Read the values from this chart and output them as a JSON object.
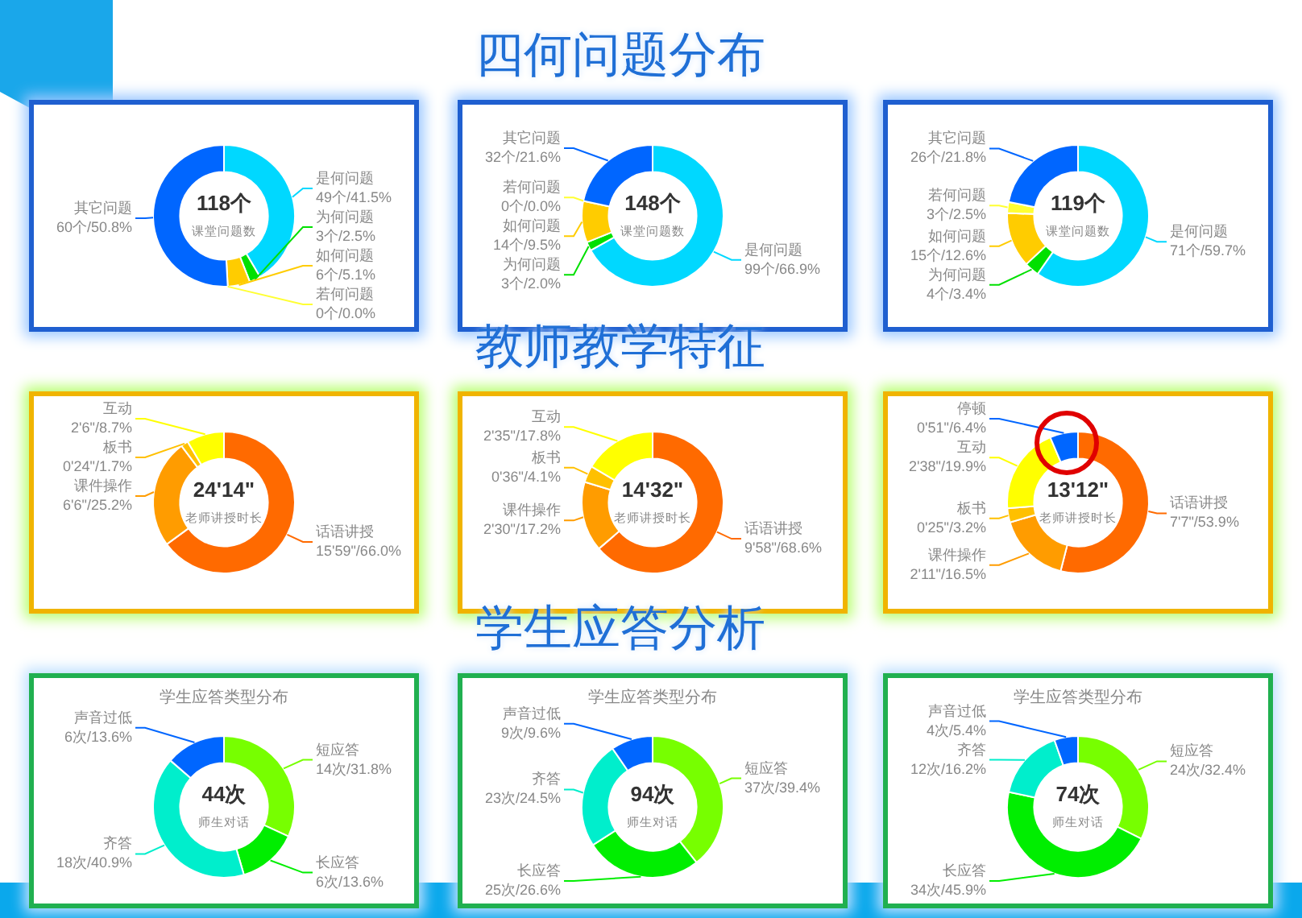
{
  "chart_data": [
    {
      "type": "donut",
      "categories": [
        "是何问题",
        "为何问题",
        "如何问题",
        "若何问题",
        "其它问题"
      ],
      "values": [
        49,
        3,
        6,
        0,
        60
      ],
      "colors": [
        "#00d8ff",
        "#00e000",
        "#ffcc00",
        "#ffff33",
        "#0066ff"
      ],
      "value_labels": [
        "49个/41.5%",
        "3个/2.5%",
        "6个/5.1%",
        "0个/0.0%",
        "60个/50.8%"
      ],
      "annotations": [
        "118个",
        "课堂问题数"
      ]
    },
    {
      "type": "donut",
      "title": "四何问题分布",
      "categories": [
        "是何问题",
        "为何问题",
        "如何问题",
        "若何问题",
        "其它问题"
      ],
      "values": [
        99,
        3,
        14,
        0,
        32
      ],
      "colors": [
        "#00d8ff",
        "#00e000",
        "#ffcc00",
        "#ffff33",
        "#0066ff"
      ],
      "value_labels": [
        "99个/66.9%",
        "3个/2.0%",
        "14个/9.5%",
        "0个/0.0%",
        "32个/21.6%"
      ],
      "annotations": [
        "148个",
        "课堂问题数"
      ]
    },
    {
      "type": "donut",
      "categories": [
        "是何问题",
        "为何问题",
        "如何问题",
        "若何问题",
        "其它问题"
      ],
      "values": [
        71,
        4,
        15,
        3,
        26
      ],
      "colors": [
        "#00d8ff",
        "#00e000",
        "#ffcc00",
        "#ffff33",
        "#0066ff"
      ],
      "value_labels": [
        "71个/59.7%",
        "4个/3.4%",
        "15个/12.6%",
        "3个/2.5%",
        "26个/21.8%"
      ],
      "annotations": [
        "119个",
        "课堂问题数"
      ]
    },
    {
      "type": "donut",
      "categories": [
        "话语讲授",
        "课件操作",
        "板书",
        "互动"
      ],
      "values": [
        66.0,
        25.2,
        1.7,
        8.7
      ],
      "colors": [
        "#ff6a00",
        "#ff9c00",
        "#ffc000",
        "#ffff00"
      ],
      "value_labels": [
        "15'59\"/66.0%",
        "6'6\"/25.2%",
        "0'24\"/1.7%",
        "2'6\"/8.7%"
      ],
      "annotations": [
        "24'14\"",
        "老师讲授时长"
      ]
    },
    {
      "type": "donut",
      "title": "教师教学特征",
      "categories": [
        "话语讲授",
        "课件操作",
        "板书",
        "互动"
      ],
      "values": [
        68.6,
        17.2,
        4.1,
        17.8
      ],
      "colors": [
        "#ff6a00",
        "#ff9c00",
        "#ffc000",
        "#ffff00"
      ],
      "value_labels": [
        "9'58\"/68.6%",
        "2'30\"/17.2%",
        "0'36\"/4.1%",
        "2'35\"/17.8%"
      ],
      "annotations": [
        "14'32\"",
        "老师讲授时长"
      ]
    },
    {
      "type": "donut",
      "categories": [
        "话语讲授",
        "课件操作",
        "板书",
        "互动",
        "停顿"
      ],
      "values": [
        53.9,
        16.5,
        3.2,
        19.9,
        6.4
      ],
      "colors": [
        "#ff6a00",
        "#ff9c00",
        "#ffc000",
        "#ffff00",
        "#0066ff"
      ],
      "value_labels": [
        "7'7\"/53.9%",
        "2'11\"/16.5%",
        "0'25\"/3.2%",
        "2'38\"/19.9%",
        "0'51\"/6.4%"
      ],
      "annotations": [
        "13'12\"",
        "老师讲授时长"
      ]
    },
    {
      "type": "donut",
      "subtitle": "学生应答类型分布",
      "categories": [
        "短应答",
        "长应答",
        "齐答",
        "声音过低"
      ],
      "values": [
        14,
        6,
        18,
        6
      ],
      "colors": [
        "#77ff00",
        "#00ee00",
        "#00eecc",
        "#0066ff"
      ],
      "value_labels": [
        "14次/31.8%",
        "6次/13.6%",
        "18次/40.9%",
        "6次/13.6%"
      ],
      "annotations": [
        "44次",
        "师生对话"
      ]
    },
    {
      "type": "donut",
      "title": "学生应答分析",
      "subtitle": "学生应答类型分布",
      "categories": [
        "短应答",
        "长应答",
        "齐答",
        "声音过低"
      ],
      "values": [
        37,
        25,
        23,
        9
      ],
      "colors": [
        "#77ff00",
        "#00ee00",
        "#00eecc",
        "#0066ff"
      ],
      "value_labels": [
        "37次/39.4%",
        "25次/26.6%",
        "23次/24.5%",
        "9次/9.6%"
      ],
      "annotations": [
        "94次",
        "师生对话"
      ]
    },
    {
      "type": "donut",
      "subtitle": "学生应答类型分布",
      "categories": [
        "短应答",
        "长应答",
        "齐答",
        "声音过低"
      ],
      "values": [
        24,
        34,
        12,
        4
      ],
      "colors": [
        "#77ff00",
        "#00ee00",
        "#00eecc",
        "#0066ff"
      ],
      "value_labels": [
        "24次/32.4%",
        "34次/45.9%",
        "12次/16.2%",
        "4次/5.4%"
      ],
      "annotations": [
        "74次",
        "师生对话"
      ]
    }
  ]
}
